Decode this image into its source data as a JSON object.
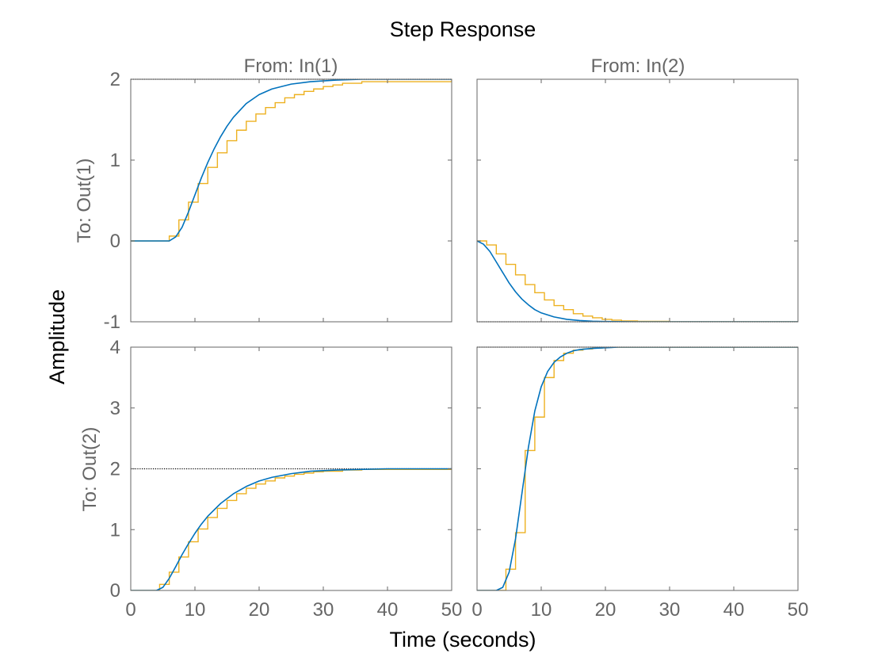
{
  "chart_data": {
    "type": "line",
    "title": "Step Response",
    "xlabel": "Time (seconds)",
    "ylabel": "Amplitude",
    "xlim": [
      0,
      50
    ],
    "x_ticks": [
      0,
      10,
      20,
      30,
      40,
      50
    ],
    "column_labels": [
      "From: In(1)",
      "From: In(2)"
    ],
    "row_labels": [
      "To: Out(1)",
      "To: Out(2)"
    ],
    "row_ylims": [
      [
        -1,
        2
      ],
      [
        0,
        4
      ]
    ],
    "row_y_ticks": [
      [
        -1,
        0,
        1,
        2
      ],
      [
        0,
        1,
        2,
        3,
        4
      ]
    ],
    "colors": {
      "continuous": "#0072BD",
      "discrete": "#EDB120",
      "steady_state": "#000000",
      "axis": "#666666",
      "title": "#000000"
    },
    "grid": false,
    "sample_time": 1.5,
    "subplots": [
      {
        "column_label": "From: In(1)",
        "row_label": "To: Out(1)",
        "steady_state": 2,
        "continuous": {
          "x": [
            0,
            6,
            7,
            8,
            9,
            10,
            11,
            12,
            13,
            14,
            15,
            16,
            18,
            20,
            22,
            25,
            28,
            32,
            36,
            40,
            50
          ],
          "y": [
            0,
            0,
            0.05,
            0.17,
            0.36,
            0.57,
            0.78,
            0.97,
            1.14,
            1.29,
            1.42,
            1.53,
            1.7,
            1.81,
            1.88,
            1.94,
            1.97,
            1.99,
            2.0,
            2.0,
            2.0
          ]
        },
        "discrete": {
          "x": [
            0,
            6,
            7.5,
            9,
            10.5,
            12,
            13.5,
            15,
            16.5,
            18,
            19.5,
            21,
            22.5,
            24,
            25.5,
            27,
            28.5,
            30,
            31.5,
            33,
            36,
            50
          ],
          "y": [
            0,
            0.06,
            0.26,
            0.48,
            0.71,
            0.91,
            1.09,
            1.24,
            1.37,
            1.48,
            1.57,
            1.65,
            1.71,
            1.77,
            1.81,
            1.85,
            1.88,
            1.91,
            1.93,
            1.95,
            1.97,
            2.0
          ]
        }
      },
      {
        "column_label": "From: In(2)",
        "row_label": "To: Out(1)",
        "steady_state": -1,
        "continuous": {
          "x": [
            0,
            1,
            2,
            3,
            4,
            5,
            6,
            7,
            8,
            9,
            10,
            12,
            14,
            16,
            18,
            20,
            25,
            30,
            50
          ],
          "y": [
            0,
            -0.04,
            -0.13,
            -0.26,
            -0.39,
            -0.52,
            -0.63,
            -0.72,
            -0.79,
            -0.85,
            -0.89,
            -0.94,
            -0.97,
            -0.985,
            -0.993,
            -0.997,
            -1.0,
            -1.0,
            -1.0
          ]
        },
        "discrete": {
          "x": [
            0,
            1.5,
            3,
            4.5,
            6,
            7.5,
            9,
            10.5,
            12,
            13.5,
            15,
            16.5,
            18,
            19.5,
            21,
            22.5,
            25,
            30,
            50
          ],
          "y": [
            0,
            -0.05,
            -0.16,
            -0.29,
            -0.42,
            -0.54,
            -0.64,
            -0.73,
            -0.8,
            -0.85,
            -0.9,
            -0.93,
            -0.95,
            -0.97,
            -0.98,
            -0.99,
            -0.995,
            -1.0,
            -1.0
          ]
        }
      },
      {
        "column_label": "From: In(1)",
        "row_label": "To: Out(2)",
        "steady_state": 2,
        "continuous": {
          "x": [
            0,
            4,
            5,
            6,
            7,
            8,
            9,
            10,
            11,
            12,
            14,
            16,
            18,
            20,
            22,
            25,
            28,
            32,
            40,
            50
          ],
          "y": [
            0,
            0,
            0.05,
            0.2,
            0.39,
            0.59,
            0.77,
            0.94,
            1.09,
            1.22,
            1.43,
            1.59,
            1.71,
            1.8,
            1.86,
            1.92,
            1.96,
            1.98,
            2.0,
            2.0
          ]
        },
        "discrete": {
          "x": [
            0,
            4.5,
            6,
            7.5,
            9,
            10.5,
            12,
            13.5,
            15,
            16.5,
            18,
            19.5,
            21,
            22.5,
            24,
            25.5,
            27,
            28.5,
            30,
            33,
            36,
            50
          ],
          "y": [
            0,
            0.1,
            0.3,
            0.55,
            0.8,
            1.01,
            1.2,
            1.35,
            1.48,
            1.59,
            1.68,
            1.75,
            1.8,
            1.85,
            1.88,
            1.91,
            1.93,
            1.95,
            1.96,
            1.98,
            1.99,
            2.0
          ]
        }
      },
      {
        "column_label": "From: In(2)",
        "row_label": "To: Out(2)",
        "steady_state": 4,
        "continuous": {
          "x": [
            0,
            3,
            4,
            5,
            6,
            7,
            8,
            9,
            10,
            11,
            12,
            13,
            14,
            15,
            16,
            18,
            20,
            22,
            25,
            30,
            50
          ],
          "y": [
            0,
            0,
            0.05,
            0.3,
            0.85,
            1.6,
            2.35,
            2.95,
            3.35,
            3.6,
            3.75,
            3.84,
            3.9,
            3.94,
            3.96,
            3.98,
            3.99,
            4.0,
            4.0,
            4.0,
            4.0
          ]
        },
        "discrete": {
          "x": [
            0,
            4.5,
            6,
            7.5,
            9,
            10.5,
            12,
            13.5,
            15,
            16.5,
            18,
            19.5,
            21,
            25,
            50
          ],
          "y": [
            0,
            0.35,
            0.95,
            2.3,
            2.85,
            3.5,
            3.78,
            3.9,
            3.95,
            3.97,
            3.985,
            3.995,
            4.0,
            4.0,
            4.0
          ]
        }
      }
    ]
  }
}
